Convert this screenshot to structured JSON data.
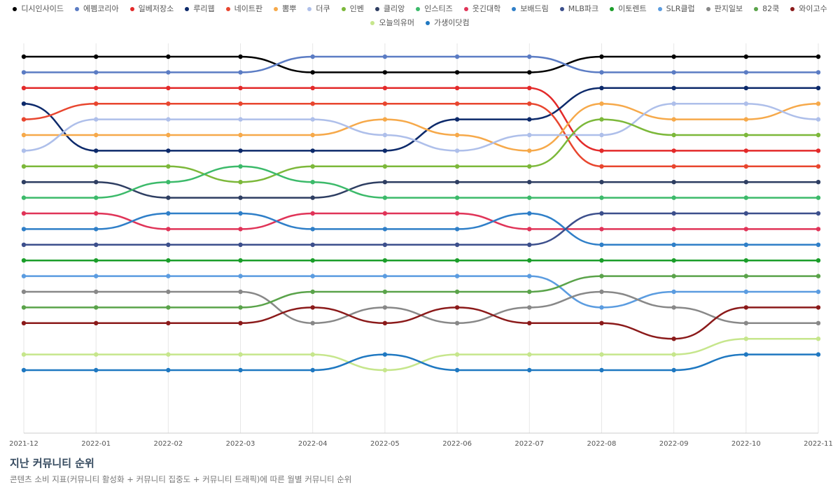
{
  "chart_data": {
    "type": "line",
    "title": "지난 커뮤니티 순위",
    "subtitle": "콘텐츠 소비 지표(커뮤니티 활성화 + 커뮤니티 집중도 + 커뮤니티 트래픽)에 따른 월별 커뮤니티 순위",
    "x": [
      "2021-12",
      "2022-01",
      "2022-02",
      "2022-03",
      "2022-04",
      "2022-05",
      "2022-06",
      "2022-07",
      "2022-08",
      "2022-09",
      "2022-10",
      "2022-11"
    ],
    "y_reversed": true,
    "ylim": [
      1,
      21
    ],
    "grid": "vertical",
    "legend_position": "top-center",
    "series": [
      {
        "name": "디시인사이드",
        "color": "#000000",
        "values": [
          1,
          1,
          1,
          1,
          2,
          2,
          2,
          2,
          1,
          1,
          1,
          1
        ]
      },
      {
        "name": "에펨코리아",
        "color": "#5b7cc4",
        "values": [
          2,
          2,
          2,
          2,
          1,
          1,
          1,
          1,
          2,
          2,
          2,
          2
        ]
      },
      {
        "name": "일베저장소",
        "color": "#e32a2a",
        "values": [
          3,
          3,
          3,
          3,
          3,
          3,
          3,
          3,
          7,
          7,
          7,
          7
        ]
      },
      {
        "name": "루리웹",
        "color": "#0d2a6b",
        "values": [
          4,
          7,
          7,
          7,
          7,
          7,
          5,
          5,
          3,
          3,
          3,
          3
        ]
      },
      {
        "name": "네이트판",
        "color": "#e8462f",
        "values": [
          5,
          4,
          4,
          4,
          4,
          4,
          4,
          4,
          8,
          8,
          8,
          8
        ]
      },
      {
        "name": "뽐뿌",
        "color": "#f6a94a",
        "values": [
          6,
          6,
          6,
          6,
          6,
          5,
          6,
          7,
          4,
          5,
          5,
          4
        ]
      },
      {
        "name": "더쿠",
        "color": "#aebfea",
        "values": [
          7,
          5,
          5,
          5,
          5,
          6,
          7,
          6,
          6,
          4,
          4,
          5
        ]
      },
      {
        "name": "인벤",
        "color": "#7cb83a",
        "values": [
          8,
          8,
          8,
          9,
          8,
          8,
          8,
          8,
          5,
          6,
          6,
          6
        ]
      },
      {
        "name": "클리앙",
        "color": "#2e3e62",
        "values": [
          9,
          9,
          10,
          10,
          10,
          9,
          9,
          9,
          9,
          9,
          9,
          9
        ]
      },
      {
        "name": "인스티즈",
        "color": "#3cba6a",
        "values": [
          10,
          10,
          9,
          8,
          9,
          10,
          10,
          10,
          10,
          10,
          10,
          10
        ]
      },
      {
        "name": "웃긴대학",
        "color": "#e03458",
        "values": [
          11,
          11,
          12,
          12,
          11,
          11,
          11,
          12,
          12,
          12,
          12,
          12
        ]
      },
      {
        "name": "보배드림",
        "color": "#2f7fc8",
        "values": [
          12,
          12,
          11,
          11,
          12,
          12,
          12,
          11,
          13,
          13,
          13,
          13
        ]
      },
      {
        "name": "MLB파크",
        "color": "#3c4f8c",
        "values": [
          13,
          13,
          13,
          13,
          13,
          13,
          13,
          13,
          11,
          11,
          11,
          11
        ]
      },
      {
        "name": "이토렌트",
        "color": "#1b9e2a",
        "values": [
          14,
          14,
          14,
          14,
          14,
          14,
          14,
          14,
          14,
          14,
          14,
          14
        ]
      },
      {
        "name": "SLR클럽",
        "color": "#5b9ce0",
        "values": [
          15,
          15,
          15,
          15,
          15,
          15,
          15,
          15,
          17,
          16,
          16,
          16
        ]
      },
      {
        "name": "판지일보",
        "color": "#888888",
        "values": [
          16,
          16,
          16,
          16,
          18,
          17,
          18,
          17,
          16,
          17,
          18,
          18
        ]
      },
      {
        "name": "82쿡",
        "color": "#5aa34a",
        "values": [
          17,
          17,
          17,
          17,
          16,
          16,
          16,
          16,
          15,
          15,
          15,
          15
        ]
      },
      {
        "name": "와이고수",
        "color": "#8b1a1a",
        "values": [
          18,
          18,
          18,
          18,
          17,
          18,
          17,
          18,
          18,
          19,
          17,
          17
        ]
      },
      {
        "name": "오늘의유머",
        "color": "#c6e68c",
        "values": [
          20,
          20,
          20,
          20,
          20,
          21,
          20,
          20,
          20,
          20,
          19,
          19
        ]
      },
      {
        "name": "가생이닷컴",
        "color": "#1f78c1",
        "values": [
          21,
          21,
          21,
          21,
          21,
          20,
          21,
          21,
          21,
          21,
          20,
          20
        ]
      }
    ]
  }
}
